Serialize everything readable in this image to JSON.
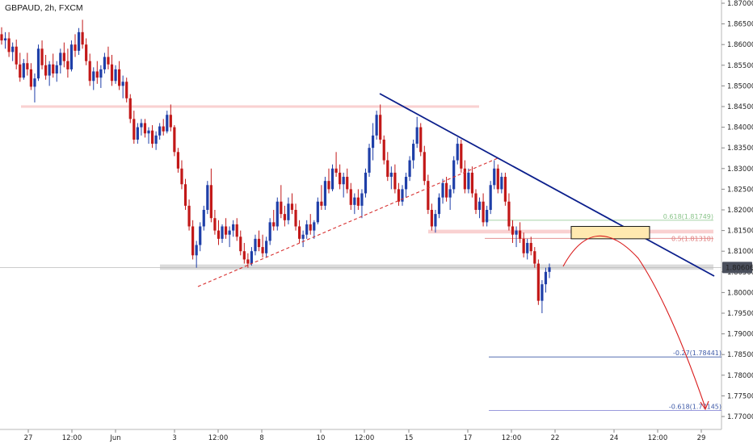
{
  "title": "GBPAUD, 2h, FXCM",
  "colors": {
    "bull": "#1f3fa8",
    "bear": "#c21818",
    "trendline": "#0b1f8c",
    "support_dash": "#d83030",
    "arrow": "#d91a1a",
    "fib_ext_line": "#3e5aa8",
    "fib_ext_line2": "#8c8cd8",
    "fib_retr_618": "#89c489",
    "fib_retr_5": "#e08080",
    "zone_fill": "#f7c6c6",
    "gray_zone": "#cfcfcf",
    "target_box_fill": "#ffe9b0",
    "target_box_stroke": "#1a1a1a",
    "price_badge": "#4a4f5c"
  },
  "chart_data": {
    "type": "candlestick",
    "title": "GBPAUD, 2h, FXCM",
    "x_ticks": [
      "27",
      "12:00",
      "Jun",
      "3",
      "12:00",
      "8",
      "10",
      "12:00",
      "15",
      "17",
      "12:00",
      "22",
      "24",
      "12:00",
      "29"
    ],
    "y_ticks": [
      "1.87000",
      "1.86500",
      "1.86000",
      "1.85500",
      "1.85000",
      "1.84500",
      "1.84000",
      "1.83500",
      "1.83000",
      "1.82500",
      "1.82000",
      "1.81500",
      "1.81000",
      "1.80500",
      "1.80000",
      "1.79500",
      "1.79000",
      "1.78500",
      "1.78000",
      "1.77500",
      "1.77000"
    ],
    "ylim": [
      1.7685,
      1.8706
    ],
    "current_price": "1.80606",
    "current_price_value": 1.80606,
    "fib_labels": {
      "r618": "0.618(1.81749)",
      "r5": "0.5(1.81310)",
      "e27": "-0.27(1.78441)",
      "e618": "-0.618(1.77145)"
    },
    "fib_values": {
      "r618": 1.81749,
      "r5": 1.8131,
      "e27": 1.78441,
      "e618": 1.77145
    },
    "resistance_zone": [
      1.8447,
      1.8453
    ],
    "support_zone": [
      1.8055,
      1.8068
    ],
    "mid_zone": [
      1.8143,
      1.8152
    ],
    "target_box": [
      1.813,
      1.816
    ],
    "candles_ohlc": [
      [
        1.8625,
        1.8642,
        1.86,
        1.861
      ],
      [
        1.861,
        1.863,
        1.859,
        1.8615
      ],
      [
        1.8615,
        1.863,
        1.857,
        1.8582
      ],
      [
        1.8582,
        1.8605,
        1.856,
        1.8595
      ],
      [
        1.8595,
        1.8612,
        1.854,
        1.8552
      ],
      [
        1.8552,
        1.858,
        1.851,
        1.852
      ],
      [
        1.852,
        1.8565,
        1.8515,
        1.8555
      ],
      [
        1.8555,
        1.858,
        1.8525,
        1.854
      ],
      [
        1.854,
        1.8555,
        1.849,
        1.8498
      ],
      [
        1.8498,
        1.853,
        1.846,
        1.8518
      ],
      [
        1.8518,
        1.86,
        1.8512,
        1.859
      ],
      [
        1.859,
        1.861,
        1.854,
        1.855
      ],
      [
        1.855,
        1.8575,
        1.8515,
        1.8525
      ],
      [
        1.8525,
        1.856,
        1.85,
        1.8552
      ],
      [
        1.8552,
        1.8578,
        1.852,
        1.853
      ],
      [
        1.853,
        1.856,
        1.851,
        1.855
      ],
      [
        1.855,
        1.859,
        1.853,
        1.858
      ],
      [
        1.858,
        1.8605,
        1.8545,
        1.856
      ],
      [
        1.856,
        1.859,
        1.852,
        1.854
      ],
      [
        1.854,
        1.861,
        1.8535,
        1.86
      ],
      [
        1.86,
        1.8625,
        1.857,
        1.8585
      ],
      [
        1.8585,
        1.864,
        1.8575,
        1.863
      ],
      [
        1.863,
        1.866,
        1.859,
        1.86
      ],
      [
        1.86,
        1.8615,
        1.855,
        1.856
      ],
      [
        1.856,
        1.8578,
        1.85,
        1.8512
      ],
      [
        1.8512,
        1.8545,
        1.849,
        1.8535
      ],
      [
        1.8535,
        1.856,
        1.8505,
        1.852
      ],
      [
        1.852,
        1.855,
        1.8495,
        1.854
      ],
      [
        1.854,
        1.858,
        1.853,
        1.857
      ],
      [
        1.857,
        1.8595,
        1.854,
        1.8552
      ],
      [
        1.8552,
        1.8575,
        1.85,
        1.8512
      ],
      [
        1.8512,
        1.855,
        1.8505,
        1.854
      ],
      [
        1.854,
        1.856,
        1.849,
        1.85
      ],
      [
        1.85,
        1.8525,
        1.847,
        1.851
      ],
      [
        1.851,
        1.852,
        1.846,
        1.847
      ],
      [
        1.847,
        1.848,
        1.841,
        1.842
      ],
      [
        1.842,
        1.844,
        1.836,
        1.837
      ],
      [
        1.837,
        1.841,
        1.836,
        1.84
      ],
      [
        1.84,
        1.842,
        1.838,
        1.841
      ],
      [
        1.841,
        1.842,
        1.8375,
        1.8385
      ],
      [
        1.8385,
        1.84,
        1.836,
        1.8392
      ],
      [
        1.8392,
        1.8405,
        1.835,
        1.836
      ],
      [
        1.836,
        1.839,
        1.8345,
        1.838
      ],
      [
        1.838,
        1.841,
        1.837,
        1.8402
      ],
      [
        1.8402,
        1.842,
        1.838,
        1.839
      ],
      [
        1.839,
        1.844,
        1.8385,
        1.843
      ],
      [
        1.843,
        1.8455,
        1.839,
        1.84
      ],
      [
        1.84,
        1.8405,
        1.833,
        1.834
      ],
      [
        1.834,
        1.835,
        1.829,
        1.83
      ],
      [
        1.83,
        1.832,
        1.825,
        1.8262
      ],
      [
        1.8262,
        1.8275,
        1.82,
        1.821
      ],
      [
        1.821,
        1.8225,
        1.815,
        1.816
      ],
      [
        1.816,
        1.8175,
        1.808,
        1.809
      ],
      [
        1.809,
        1.8125,
        1.806,
        1.8115
      ],
      [
        1.8115,
        1.817,
        1.81,
        1.816
      ],
      [
        1.816,
        1.821,
        1.815,
        1.82
      ],
      [
        1.82,
        1.827,
        1.819,
        1.826
      ],
      [
        1.826,
        1.83,
        1.817,
        1.818
      ],
      [
        1.818,
        1.82,
        1.814,
        1.815
      ],
      [
        1.815,
        1.8175,
        1.8115,
        1.813
      ],
      [
        1.813,
        1.8165,
        1.812,
        1.816
      ],
      [
        1.816,
        1.818,
        1.813,
        1.814
      ],
      [
        1.814,
        1.816,
        1.811,
        1.815
      ],
      [
        1.815,
        1.8175,
        1.8135,
        1.8165
      ],
      [
        1.8165,
        1.818,
        1.8125,
        1.8135
      ],
      [
        1.8135,
        1.815,
        1.809,
        1.81
      ],
      [
        1.81,
        1.812,
        1.807,
        1.808
      ],
      [
        1.808,
        1.8095,
        1.806,
        1.807
      ],
      [
        1.807,
        1.811,
        1.8065,
        1.81
      ],
      [
        1.81,
        1.814,
        1.809,
        1.813
      ],
      [
        1.813,
        1.815,
        1.81,
        1.811
      ],
      [
        1.811,
        1.814,
        1.8085,
        1.8095
      ],
      [
        1.8095,
        1.8135,
        1.8085,
        1.8125
      ],
      [
        1.8125,
        1.818,
        1.8115,
        1.817
      ],
      [
        1.817,
        1.82,
        1.815,
        1.816
      ],
      [
        1.816,
        1.823,
        1.815,
        1.822
      ],
      [
        1.822,
        1.826,
        1.818,
        1.819
      ],
      [
        1.819,
        1.821,
        1.816,
        1.8175
      ],
      [
        1.8175,
        1.823,
        1.8165,
        1.8215
      ],
      [
        1.8215,
        1.824,
        1.819,
        1.82
      ],
      [
        1.82,
        1.8215,
        1.815,
        1.816
      ],
      [
        1.816,
        1.8175,
        1.812,
        1.813
      ],
      [
        1.813,
        1.815,
        1.811,
        1.814
      ],
      [
        1.814,
        1.8175,
        1.813,
        1.8165
      ],
      [
        1.8165,
        1.819,
        1.814,
        1.815
      ],
      [
        1.815,
        1.8175,
        1.813,
        1.817
      ],
      [
        1.817,
        1.823,
        1.8165,
        1.822
      ],
      [
        1.822,
        1.826,
        1.82,
        1.821
      ],
      [
        1.821,
        1.828,
        1.82,
        1.827
      ],
      [
        1.827,
        1.83,
        1.824,
        1.825
      ],
      [
        1.825,
        1.831,
        1.8245,
        1.83
      ],
      [
        1.83,
        1.834,
        1.828,
        1.829
      ],
      [
        1.829,
        1.831,
        1.825,
        1.8262
      ],
      [
        1.8262,
        1.829,
        1.823,
        1.828
      ],
      [
        1.828,
        1.83,
        1.824,
        1.825
      ],
      [
        1.825,
        1.8265,
        1.82,
        1.8212
      ],
      [
        1.8212,
        1.824,
        1.819,
        1.823
      ],
      [
        1.823,
        1.825,
        1.82,
        1.821
      ],
      [
        1.821,
        1.825,
        1.818,
        1.824
      ],
      [
        1.824,
        1.83,
        1.823,
        1.829
      ],
      [
        1.829,
        1.836,
        1.828,
        1.835
      ],
      [
        1.835,
        1.841,
        1.832,
        1.838
      ],
      [
        1.838,
        1.844,
        1.837,
        1.843
      ],
      [
        1.843,
        1.8455,
        1.836,
        1.837
      ],
      [
        1.837,
        1.838,
        1.831,
        1.832
      ],
      [
        1.832,
        1.834,
        1.827,
        1.828
      ],
      [
        1.828,
        1.8305,
        1.825,
        1.829
      ],
      [
        1.829,
        1.831,
        1.824,
        1.825
      ],
      [
        1.825,
        1.8265,
        1.821,
        1.822
      ],
      [
        1.822,
        1.826,
        1.821,
        1.825
      ],
      [
        1.825,
        1.829,
        1.823,
        1.828
      ],
      [
        1.828,
        1.833,
        1.827,
        1.832
      ],
      [
        1.832,
        1.837,
        1.83,
        1.836
      ],
      [
        1.836,
        1.8425,
        1.835,
        1.84
      ],
      [
        1.84,
        1.841,
        1.833,
        1.834
      ],
      [
        1.834,
        1.8355,
        1.826,
        1.827
      ],
      [
        1.827,
        1.8285,
        1.819,
        1.82
      ],
      [
        1.82,
        1.8215,
        1.815,
        1.816
      ],
      [
        1.816,
        1.82,
        1.8145,
        1.819
      ],
      [
        1.819,
        1.824,
        1.818,
        1.823
      ],
      [
        1.823,
        1.8275,
        1.8215,
        1.8265
      ],
      [
        1.8265,
        1.828,
        1.822,
        1.823
      ],
      [
        1.823,
        1.826,
        1.82,
        1.825
      ],
      [
        1.825,
        1.833,
        1.824,
        1.832
      ],
      [
        1.832,
        1.8375,
        1.831,
        1.836
      ],
      [
        1.836,
        1.837,
        1.829,
        1.83
      ],
      [
        1.83,
        1.832,
        1.824,
        1.825
      ],
      [
        1.825,
        1.83,
        1.824,
        1.829
      ],
      [
        1.829,
        1.8305,
        1.823,
        1.824
      ],
      [
        1.824,
        1.825,
        1.819,
        1.82
      ],
      [
        1.82,
        1.823,
        1.818,
        1.822
      ],
      [
        1.822,
        1.824,
        1.816,
        1.817
      ],
      [
        1.817,
        1.821,
        1.816,
        1.82
      ],
      [
        1.82,
        1.827,
        1.819,
        1.826
      ],
      [
        1.826,
        1.832,
        1.825,
        1.83
      ],
      [
        1.83,
        1.831,
        1.824,
        1.825
      ],
      [
        1.825,
        1.829,
        1.824,
        1.828
      ],
      [
        1.828,
        1.829,
        1.821,
        1.822
      ],
      [
        1.822,
        1.824,
        1.815,
        1.816
      ],
      [
        1.816,
        1.8175,
        1.812,
        1.814
      ],
      [
        1.814,
        1.816,
        1.811,
        1.815
      ],
      [
        1.815,
        1.817,
        1.812,
        1.813
      ],
      [
        1.813,
        1.8145,
        1.8085,
        1.8095
      ],
      [
        1.8095,
        1.813,
        1.808,
        1.812
      ],
      [
        1.812,
        1.8135,
        1.809,
        1.81
      ],
      [
        1.81,
        1.811,
        1.806,
        1.807
      ],
      [
        1.807,
        1.808,
        1.797,
        1.798
      ],
      [
        1.798,
        1.803,
        1.795,
        1.802
      ],
      [
        1.802,
        1.806,
        1.8,
        1.805
      ],
      [
        1.805,
        1.807,
        1.8035,
        1.8061
      ]
    ]
  }
}
